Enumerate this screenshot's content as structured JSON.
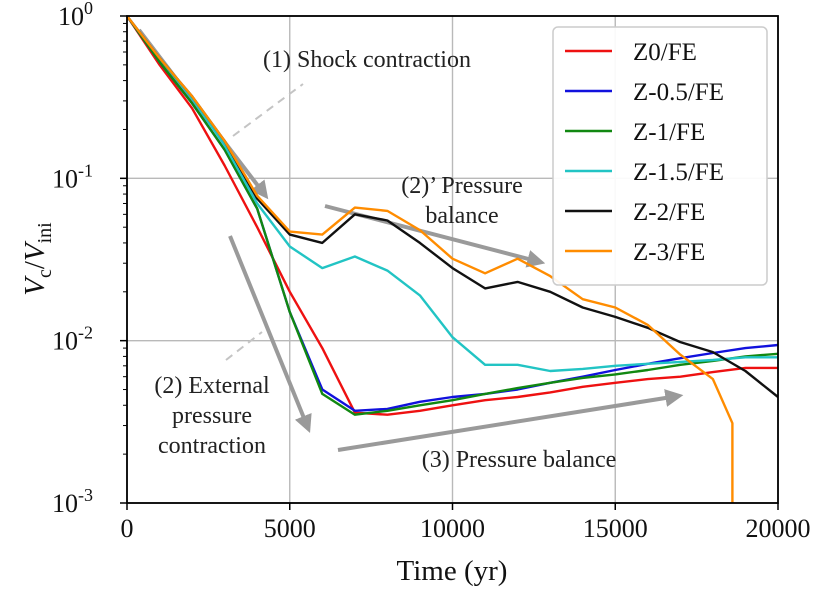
{
  "chart_data": {
    "type": "line",
    "x_label": "Time (yr)",
    "y_label": "V_c/V_ini",
    "y_scale": "log",
    "xlim": [
      0,
      20000
    ],
    "ylim": [
      0.001,
      1
    ],
    "grid": true,
    "legend_position": "top-right",
    "x_ticks": [
      {
        "value": 0,
        "label": "0"
      },
      {
        "value": 5000,
        "label": "5000"
      },
      {
        "value": 10000,
        "label": "10000"
      },
      {
        "value": 15000,
        "label": "15000"
      },
      {
        "value": 20000,
        "label": "20000"
      }
    ],
    "y_ticks": [
      {
        "value": 1,
        "base": "10",
        "exp": "0"
      },
      {
        "value": 0.1,
        "base": "10",
        "exp": "-1"
      },
      {
        "value": 0.01,
        "base": "10",
        "exp": "-2"
      },
      {
        "value": 0.001,
        "base": "10",
        "exp": "-3"
      }
    ],
    "series": [
      {
        "name": "Z0/FE",
        "color": "#ee1111",
        "points": [
          [
            0,
            1.0
          ],
          [
            1000,
            0.5
          ],
          [
            2000,
            0.27
          ],
          [
            3000,
            0.12
          ],
          [
            4000,
            0.05
          ],
          [
            5000,
            0.02
          ],
          [
            6000,
            0.009
          ],
          [
            7000,
            0.0036
          ],
          [
            8000,
            0.0035
          ],
          [
            9000,
            0.0037
          ],
          [
            10000,
            0.004
          ],
          [
            11000,
            0.0043
          ],
          [
            12000,
            0.0045
          ],
          [
            13000,
            0.0048
          ],
          [
            14000,
            0.0052
          ],
          [
            15000,
            0.0055
          ],
          [
            16000,
            0.0058
          ],
          [
            17000,
            0.006
          ],
          [
            18000,
            0.0064
          ],
          [
            19000,
            0.0068
          ],
          [
            20000,
            0.0068
          ]
        ]
      },
      {
        "name": "Z-0.5/FE",
        "color": "#1111dd",
        "points": [
          [
            0,
            1.0
          ],
          [
            1000,
            0.52
          ],
          [
            2000,
            0.29
          ],
          [
            3000,
            0.15
          ],
          [
            4000,
            0.065
          ],
          [
            5000,
            0.015
          ],
          [
            6000,
            0.005
          ],
          [
            7000,
            0.0037
          ],
          [
            8000,
            0.0038
          ],
          [
            9000,
            0.0042
          ],
          [
            10000,
            0.0045
          ],
          [
            11000,
            0.0047
          ],
          [
            12000,
            0.005
          ],
          [
            13000,
            0.0055
          ],
          [
            14000,
            0.006
          ],
          [
            15000,
            0.0066
          ],
          [
            16000,
            0.0072
          ],
          [
            17000,
            0.0078
          ],
          [
            18000,
            0.0084
          ],
          [
            19000,
            0.009
          ],
          [
            20000,
            0.0094
          ]
        ]
      },
      {
        "name": "Z-1/FE",
        "color": "#118811",
        "points": [
          [
            0,
            1.0
          ],
          [
            1000,
            0.52
          ],
          [
            2000,
            0.29
          ],
          [
            3000,
            0.15
          ],
          [
            4000,
            0.065
          ],
          [
            5000,
            0.015
          ],
          [
            6000,
            0.0047
          ],
          [
            7000,
            0.0035
          ],
          [
            8000,
            0.0037
          ],
          [
            9000,
            0.004
          ],
          [
            10000,
            0.0043
          ],
          [
            11000,
            0.0047
          ],
          [
            12000,
            0.0051
          ],
          [
            13000,
            0.0055
          ],
          [
            14000,
            0.0059
          ],
          [
            15000,
            0.0062
          ],
          [
            16000,
            0.0066
          ],
          [
            17000,
            0.0071
          ],
          [
            18000,
            0.0075
          ],
          [
            19000,
            0.008
          ],
          [
            20000,
            0.0083
          ]
        ]
      },
      {
        "name": "Z-1.5/FE",
        "color": "#22c4c4",
        "points": [
          [
            0,
            1.0
          ],
          [
            1000,
            0.55
          ],
          [
            2000,
            0.31
          ],
          [
            3000,
            0.16
          ],
          [
            4000,
            0.07
          ],
          [
            5000,
            0.038
          ],
          [
            6000,
            0.028
          ],
          [
            7000,
            0.033
          ],
          [
            8000,
            0.027
          ],
          [
            9000,
            0.019
          ],
          [
            10000,
            0.0105
          ],
          [
            11000,
            0.0071
          ],
          [
            12000,
            0.0071
          ],
          [
            13000,
            0.0065
          ],
          [
            14000,
            0.0067
          ],
          [
            15000,
            0.007
          ],
          [
            16000,
            0.0072
          ],
          [
            17000,
            0.0074
          ],
          [
            18000,
            0.0076
          ],
          [
            19000,
            0.0079
          ],
          [
            20000,
            0.0079
          ]
        ]
      },
      {
        "name": "Z-2/FE",
        "color": "#111111",
        "points": [
          [
            0,
            1.0
          ],
          [
            1000,
            0.55
          ],
          [
            2000,
            0.32
          ],
          [
            3000,
            0.17
          ],
          [
            4000,
            0.075
          ],
          [
            5000,
            0.045
          ],
          [
            6000,
            0.04
          ],
          [
            7000,
            0.06
          ],
          [
            8000,
            0.055
          ],
          [
            9000,
            0.04
          ],
          [
            10000,
            0.028
          ],
          [
            11000,
            0.021
          ],
          [
            12000,
            0.023
          ],
          [
            13000,
            0.02
          ],
          [
            14000,
            0.016
          ],
          [
            15000,
            0.014
          ],
          [
            16000,
            0.012
          ],
          [
            17000,
            0.0098
          ],
          [
            18000,
            0.0085
          ],
          [
            19000,
            0.0065
          ],
          [
            20000,
            0.0045
          ]
        ]
      },
      {
        "name": "Z-3/FE",
        "color": "#ff8c00",
        "points": [
          [
            0,
            1.0
          ],
          [
            1000,
            0.55
          ],
          [
            2000,
            0.32
          ],
          [
            3000,
            0.17
          ],
          [
            4000,
            0.078
          ],
          [
            5000,
            0.047
          ],
          [
            6000,
            0.045
          ],
          [
            7000,
            0.066
          ],
          [
            8000,
            0.063
          ],
          [
            9000,
            0.048
          ],
          [
            10000,
            0.032
          ],
          [
            11000,
            0.026
          ],
          [
            12000,
            0.032
          ],
          [
            13000,
            0.025
          ],
          [
            14000,
            0.018
          ],
          [
            15000,
            0.016
          ],
          [
            16000,
            0.0125
          ],
          [
            17000,
            0.0082
          ],
          [
            18000,
            0.0058
          ],
          [
            18600,
            0.0031
          ],
          [
            18600,
            0.001
          ]
        ]
      }
    ],
    "annotations": [
      {
        "id": "shock",
        "lines": [
          "(1) Shock contraction"
        ]
      },
      {
        "id": "pb-prime",
        "lines": [
          "(2)’ Pressure",
          "balance"
        ]
      },
      {
        "id": "external",
        "lines": [
          "(2) External",
          "pressure",
          "contraction"
        ]
      },
      {
        "id": "pb3",
        "lines": [
          "(3) Pressure balance"
        ]
      }
    ]
  }
}
